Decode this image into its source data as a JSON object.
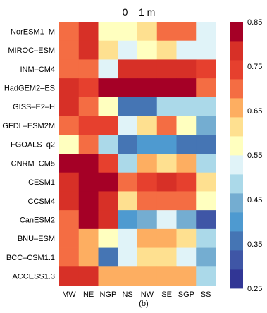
{
  "chart_data": {
    "type": "heatmap",
    "title": "0 – 1 m",
    "panel_label": "(b)",
    "columns": [
      "MW",
      "NE",
      "NGP",
      "NS",
      "NW",
      "SE",
      "SGP",
      "SS"
    ],
    "rows": [
      "NorESM1–M",
      "MIROC–ESM",
      "INM–CM4",
      "HadGEM2–ES",
      "GISS–E2–H",
      "GFDL–ESM2M",
      "FGOALS–q2",
      "CNRM–CM5",
      "CESM1",
      "CCSM4",
      "CanESM2",
      "BNU–ESM",
      "BCC–CSM1.1",
      "ACCESS1.3"
    ],
    "values": [
      [
        0.69,
        0.78,
        0.56,
        0.56,
        0.62,
        0.7,
        0.7,
        0.53
      ],
      [
        0.69,
        0.78,
        0.63,
        0.52,
        0.56,
        0.63,
        0.53,
        0.53
      ],
      [
        0.71,
        0.71,
        0.53,
        0.79,
        0.79,
        0.79,
        0.79,
        0.73
      ],
      [
        0.78,
        0.75,
        0.83,
        0.83,
        0.83,
        0.83,
        0.83,
        0.7
      ],
      [
        0.78,
        0.7,
        0.56,
        0.34,
        0.34,
        0.49,
        0.49,
        0.5
      ],
      [
        0.72,
        0.74,
        0.74,
        0.53,
        0.63,
        0.7,
        0.57,
        0.46
      ],
      [
        0.58,
        0.7,
        0.5,
        0.34,
        0.4,
        0.4,
        0.34,
        0.34
      ],
      [
        0.84,
        0.84,
        0.74,
        0.48,
        0.66,
        0.62,
        0.66,
        0.49
      ],
      [
        0.78,
        0.84,
        0.84,
        0.72,
        0.75,
        0.78,
        0.75,
        0.63
      ],
      [
        0.78,
        0.84,
        0.79,
        0.63,
        0.72,
        0.7,
        0.7,
        0.56
      ],
      [
        0.72,
        0.84,
        0.79,
        0.41,
        0.46,
        0.52,
        0.46,
        0.31
      ],
      [
        0.72,
        0.66,
        0.57,
        0.52,
        0.64,
        0.64,
        0.62,
        0.5
      ],
      [
        0.72,
        0.66,
        0.37,
        0.51,
        0.63,
        0.63,
        0.53,
        0.45
      ],
      [
        0.78,
        0.78,
        0.64,
        0.64,
        0.64,
        0.64,
        0.64,
        0.47
      ]
    ],
    "colorbar": {
      "min": 0.25,
      "max": 0.85,
      "ticks": [
        "0.85",
        "0.75",
        "0.65",
        "0.55",
        "0.45",
        "0.35",
        "0.25"
      ],
      "colors": [
        "#313695",
        "#3f56a6",
        "#4575b4",
        "#4e9ad0",
        "#74add1",
        "#abd9e9",
        "#e0f3f8",
        "#ffffbf",
        "#fee090",
        "#fdae61",
        "#f46d43",
        "#e6402e",
        "#d73027",
        "#a50026"
      ]
    }
  }
}
